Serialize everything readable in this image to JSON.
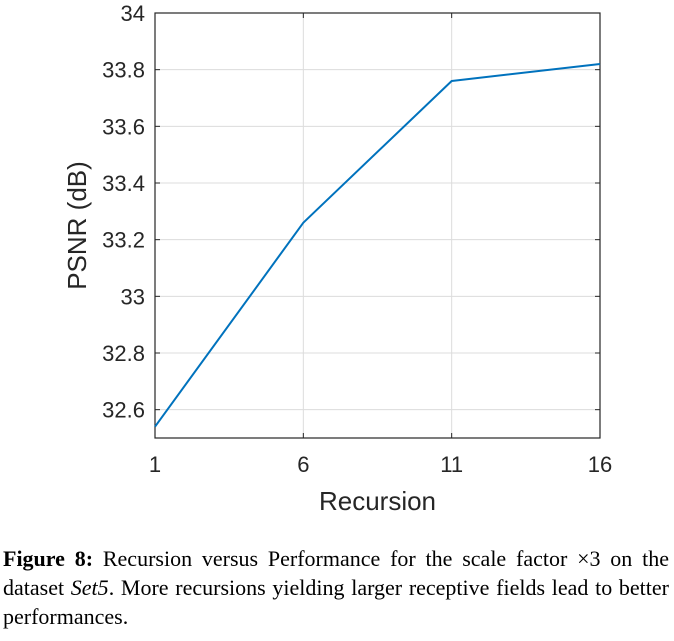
{
  "chart_data": {
    "type": "line",
    "xlabel": "Recursion",
    "ylabel": "PSNR (dB)",
    "xlim": [
      1,
      16
    ],
    "ylim": [
      32.5,
      34
    ],
    "xticks": [
      1,
      6,
      11,
      16
    ],
    "xtick_labels": [
      "1",
      "6",
      "11",
      "16"
    ],
    "yticks": [
      32.6,
      32.8,
      33,
      33.2,
      33.4,
      33.6,
      33.8,
      34
    ],
    "ytick_labels": [
      "32.6",
      "32.8",
      "33",
      "33.2",
      "33.4",
      "33.6",
      "33.8",
      "34"
    ],
    "grid": true,
    "series": [
      {
        "x": [
          1,
          6,
          11,
          16
        ],
        "y": [
          32.54,
          33.26,
          33.76,
          33.82
        ]
      }
    ]
  },
  "colors": {
    "line": "#0072BD",
    "grid": "#dcdcdc",
    "axis": "#262626"
  },
  "caption": {
    "label": "Figure 8:",
    "text_1": " Recursion versus Performance for the scale factor ×3 on the dataset ",
    "dataset": "Set5",
    "text_2": ". More recursions yielding larger receptive fields lead to better performances."
  }
}
